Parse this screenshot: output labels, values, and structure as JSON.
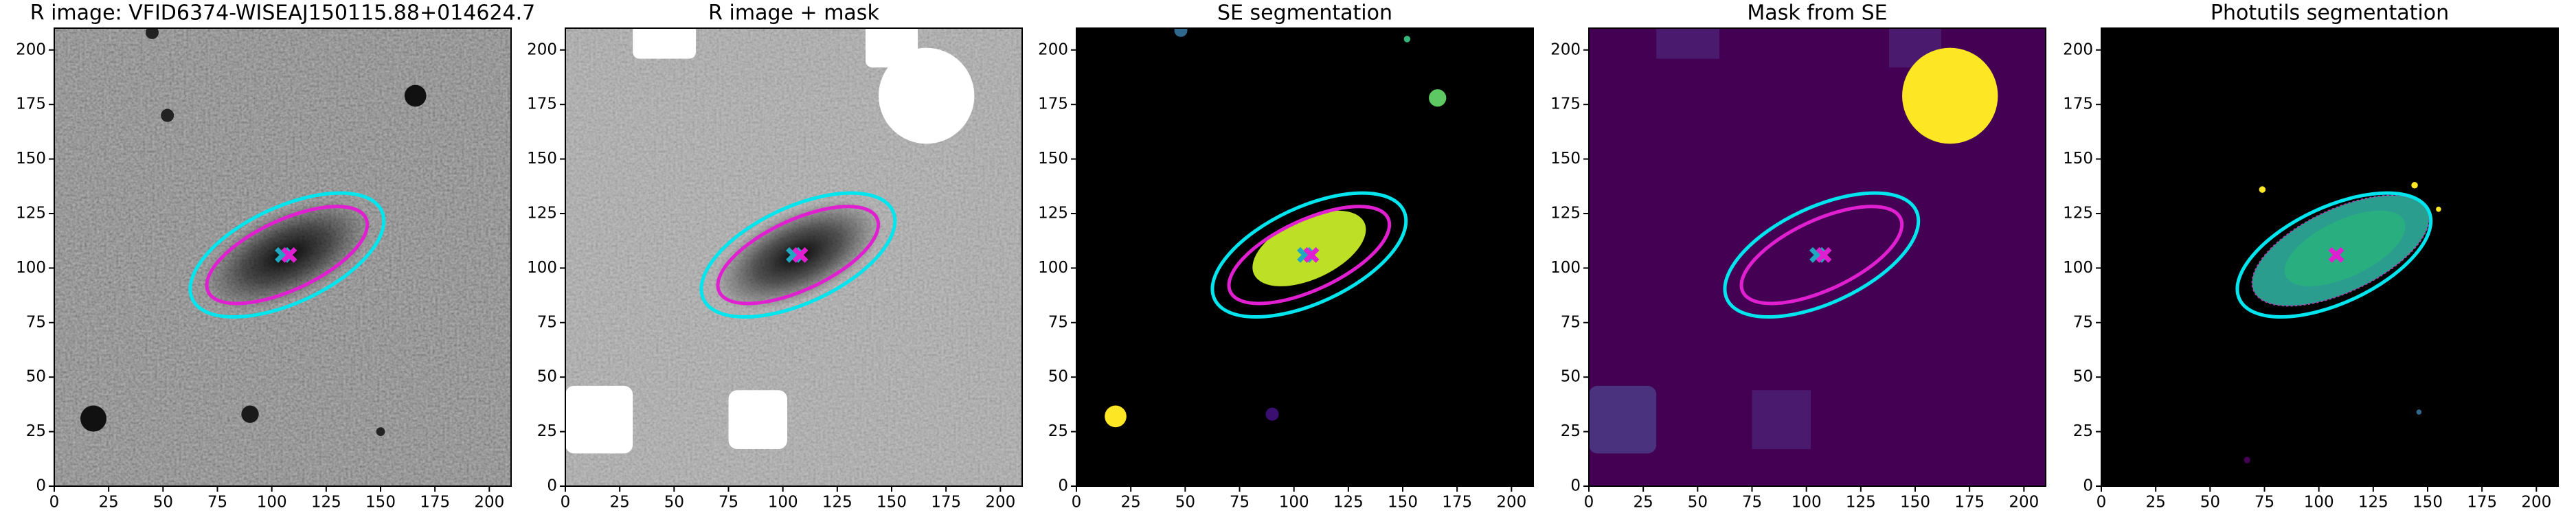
{
  "chart_data": [
    {
      "type": "image",
      "title": "R image: VFID6374-WISEAJ150115.88+014624.7",
      "xlim": [
        0,
        210
      ],
      "ylim": [
        0,
        210
      ],
      "xticks": [
        0,
        25,
        50,
        75,
        100,
        125,
        150,
        175,
        200
      ],
      "yticks": [
        0,
        25,
        50,
        75,
        100,
        125,
        150,
        175,
        200
      ],
      "ellipses": [
        {
          "x": 107,
          "y": 106,
          "width": 96,
          "height": 44,
          "angle": 25,
          "color": "#00e5ee"
        },
        {
          "x": 107,
          "y": 106,
          "width": 80,
          "height": 32,
          "angle": 25,
          "color": "#e020d0"
        }
      ],
      "markers": [
        {
          "x": 105,
          "y": 106,
          "color": "#1fa8c0"
        },
        {
          "x": 108,
          "y": 106,
          "color": "#e020d0"
        }
      ]
    },
    {
      "type": "image",
      "title": "R image + mask",
      "xlim": [
        0,
        210
      ],
      "ylim": [
        0,
        210
      ],
      "xticks": [
        0,
        25,
        50,
        75,
        100,
        125,
        150,
        175,
        200
      ],
      "yticks": [
        0,
        25,
        50,
        75,
        100,
        125,
        150,
        175,
        200
      ],
      "ellipses": [
        {
          "x": 107,
          "y": 106,
          "width": 96,
          "height": 44,
          "angle": 25,
          "color": "#00e5ee"
        },
        {
          "x": 107,
          "y": 106,
          "width": 80,
          "height": 32,
          "angle": 25,
          "color": "#e020d0"
        }
      ],
      "markers": [
        {
          "x": 105,
          "y": 106,
          "color": "#1fa8c0"
        },
        {
          "x": 108,
          "y": 106,
          "color": "#e020d0"
        }
      ]
    },
    {
      "type": "image",
      "title": "SE segmentation",
      "xlim": [
        0,
        210
      ],
      "ylim": [
        0,
        210
      ],
      "xticks": [
        0,
        25,
        50,
        75,
        100,
        125,
        150,
        175,
        200
      ],
      "yticks": [
        0,
        25,
        50,
        75,
        100,
        125,
        150,
        175,
        200
      ],
      "ellipses": [
        {
          "x": 107,
          "y": 106,
          "width": 96,
          "height": 44,
          "angle": 25,
          "color": "#00e5ee"
        },
        {
          "x": 107,
          "y": 106,
          "width": 80,
          "height": 32,
          "angle": 25,
          "color": "#e020d0"
        }
      ],
      "markers": [
        {
          "x": 105,
          "y": 106,
          "color": "#1fa8c0"
        },
        {
          "x": 108,
          "y": 106,
          "color": "#e020d0"
        }
      ]
    },
    {
      "type": "image",
      "title": "Mask from SE",
      "xlim": [
        0,
        210
      ],
      "ylim": [
        0,
        210
      ],
      "xticks": [
        0,
        25,
        50,
        75,
        100,
        125,
        150,
        175,
        200
      ],
      "yticks": [
        0,
        25,
        50,
        75,
        100,
        125,
        150,
        175,
        200
      ],
      "ellipses": [
        {
          "x": 107,
          "y": 106,
          "width": 96,
          "height": 44,
          "angle": 25,
          "color": "#00e5ee"
        },
        {
          "x": 107,
          "y": 106,
          "width": 80,
          "height": 32,
          "angle": 25,
          "color": "#e020d0"
        }
      ],
      "markers": [
        {
          "x": 105,
          "y": 106,
          "color": "#1fa8c0"
        },
        {
          "x": 108,
          "y": 106,
          "color": "#e020d0"
        }
      ]
    },
    {
      "type": "image",
      "title": "Photutils segmentation",
      "xlim": [
        0,
        210
      ],
      "ylim": [
        0,
        210
      ],
      "xticks": [
        0,
        25,
        50,
        75,
        100,
        125,
        150,
        175,
        200
      ],
      "yticks": [
        0,
        25,
        50,
        75,
        100,
        125,
        150,
        175,
        200
      ],
      "ellipses": [
        {
          "x": 107,
          "y": 106,
          "width": 96,
          "height": 44,
          "angle": 25,
          "color": "#00e5ee"
        }
      ],
      "markers": [
        {
          "x": 108,
          "y": 106,
          "color": "#e020d0"
        }
      ]
    }
  ]
}
